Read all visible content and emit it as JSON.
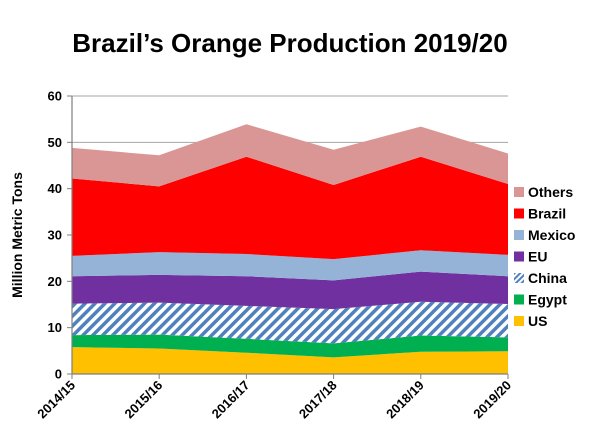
{
  "chart_data": {
    "type": "area",
    "stacked": true,
    "title": "Brazil’s Orange Production 2019/20",
    "xlabel": "",
    "ylabel": "Million Metric Tons",
    "ylim": [
      0,
      60
    ],
    "yticks": [
      "0",
      "10",
      "20",
      "30",
      "40",
      "50",
      "60"
    ],
    "categories": [
      "2014/15",
      "2015/16",
      "2016/17",
      "2017/18",
      "2018/19",
      "2019/20"
    ],
    "grid": true,
    "legend_position": "right",
    "series": [
      {
        "name": "US",
        "color": "#FFC000",
        "pattern": "solid",
        "values": [
          5.8,
          5.5,
          4.6,
          3.6,
          4.8,
          4.9
        ]
      },
      {
        "name": "Egypt",
        "color": "#00B050",
        "pattern": "solid",
        "values": [
          2.6,
          3.0,
          3.0,
          3.0,
          3.5,
          3.0
        ]
      },
      {
        "name": "China",
        "color": "#4F81BD",
        "pattern": "diagonal-stripes",
        "values": [
          6.8,
          6.9,
          7.1,
          7.4,
          7.3,
          7.2
        ]
      },
      {
        "name": "EU",
        "color": "#7030A0",
        "pattern": "solid",
        "values": [
          5.9,
          6.0,
          6.4,
          6.2,
          6.5,
          6.0
        ]
      },
      {
        "name": "Mexico",
        "color": "#95B3D7",
        "pattern": "solid",
        "values": [
          4.4,
          4.9,
          4.8,
          4.6,
          4.6,
          4.6
        ]
      },
      {
        "name": "Brazil",
        "color": "#FF0000",
        "pattern": "solid",
        "values": [
          16.7,
          14.2,
          21.0,
          16.0,
          20.2,
          15.3
        ]
      },
      {
        "name": "Others",
        "color": "#DA9694",
        "pattern": "solid",
        "values": [
          6.6,
          6.7,
          7.0,
          7.6,
          6.5,
          6.6
        ]
      }
    ],
    "legend_order": [
      "Others",
      "Brazil",
      "Mexico",
      "EU",
      "China",
      "Egypt",
      "US"
    ]
  }
}
